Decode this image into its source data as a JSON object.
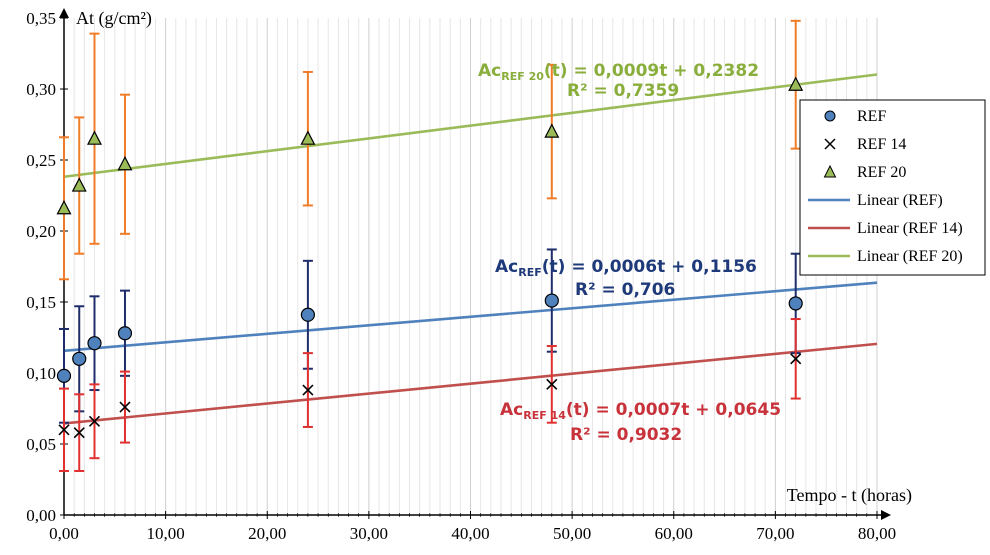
{
  "chart_data": {
    "type": "scatter",
    "xlabel": "Tempo - t (horas)",
    "ylabel": "At (g/cm²)",
    "xlim": [
      0,
      80
    ],
    "ylim": [
      0,
      0.35
    ],
    "x_ticks": [
      "0,00",
      "10,00",
      "20,00",
      "30,00",
      "40,00",
      "50,00",
      "60,00",
      "70,00",
      "80,00"
    ],
    "y_ticks": [
      "0,00",
      "0,05",
      "0,10",
      "0,15",
      "0,20",
      "0,25",
      "0,30",
      "0,35"
    ],
    "grid": "vertical",
    "legend_position": "right",
    "colors": {
      "ref_marker": "#4f81bd",
      "ref_error": "#1f2d6b",
      "ref14_error": "#e03030",
      "ref20_marker": "#9bbb59",
      "ref20_error": "#f07c28",
      "linear_ref": "#4f81bd",
      "linear_ref14": "#c0504d",
      "linear_ref20": "#9bbb59",
      "eq_ref": "#1f3a7a",
      "eq_ref14": "#c8323a",
      "eq_ref20": "#8aae3c"
    },
    "series": [
      {
        "name": "REF",
        "marker": "circle",
        "points": [
          {
            "x": 0,
            "y": 0.098,
            "err": 0.033
          },
          {
            "x": 1.5,
            "y": 0.11,
            "err": 0.037
          },
          {
            "x": 3,
            "y": 0.121,
            "err": 0.033
          },
          {
            "x": 6,
            "y": 0.128,
            "err": 0.03
          },
          {
            "x": 24,
            "y": 0.141,
            "err": 0.038
          },
          {
            "x": 48,
            "y": 0.151,
            "err": 0.036
          },
          {
            "x": 72,
            "y": 0.149,
            "err": 0.035
          }
        ]
      },
      {
        "name": "REF 14",
        "marker": "cross",
        "points": [
          {
            "x": 0,
            "y": 0.06,
            "err": 0.029
          },
          {
            "x": 1.5,
            "y": 0.058,
            "err": 0.027
          },
          {
            "x": 3,
            "y": 0.066,
            "err": 0.026
          },
          {
            "x": 6,
            "y": 0.076,
            "err": 0.025
          },
          {
            "x": 24,
            "y": 0.088,
            "err": 0.026
          },
          {
            "x": 48,
            "y": 0.092,
            "err": 0.027
          },
          {
            "x": 72,
            "y": 0.11,
            "err": 0.028
          }
        ]
      },
      {
        "name": "REF 20",
        "marker": "triangle",
        "points": [
          {
            "x": 0,
            "y": 0.216,
            "err": 0.05
          },
          {
            "x": 1.5,
            "y": 0.232,
            "err": 0.048
          },
          {
            "x": 3,
            "y": 0.265,
            "err": 0.074
          },
          {
            "x": 6,
            "y": 0.247,
            "err": 0.049
          },
          {
            "x": 24,
            "y": 0.265,
            "err": 0.047
          },
          {
            "x": 48,
            "y": 0.27,
            "err": 0.047
          },
          {
            "x": 72,
            "y": 0.303,
            "err": 0.045
          }
        ]
      }
    ],
    "trendlines": [
      {
        "name": "Linear (REF)",
        "slope": 0.0006,
        "intercept": 0.1156
      },
      {
        "name": "Linear (REF 14)",
        "slope": 0.0007,
        "intercept": 0.0645
      },
      {
        "name": "Linear (REF 20)",
        "slope": 0.0009,
        "intercept": 0.2382
      }
    ],
    "annotations": [
      {
        "prefix": "Ac",
        "sub": "REF 20",
        "rest": "(t) = 0,0009t + 0,2382",
        "r2": "R² = 0,7359"
      },
      {
        "prefix": "Ac",
        "sub": "REF",
        "rest": "(t) = 0,0006t + 0,1156",
        "r2": "R² = 0,706"
      },
      {
        "prefix": "Ac",
        "sub": "REF 14",
        "rest": "(t) = 0,0007t + 0,0645",
        "r2": "R² = 0,9032"
      }
    ],
    "legend": [
      "REF",
      "REF 14",
      "REF 20",
      "Linear (REF)",
      "Linear (REF 14)",
      "Linear (REF 20)"
    ]
  }
}
